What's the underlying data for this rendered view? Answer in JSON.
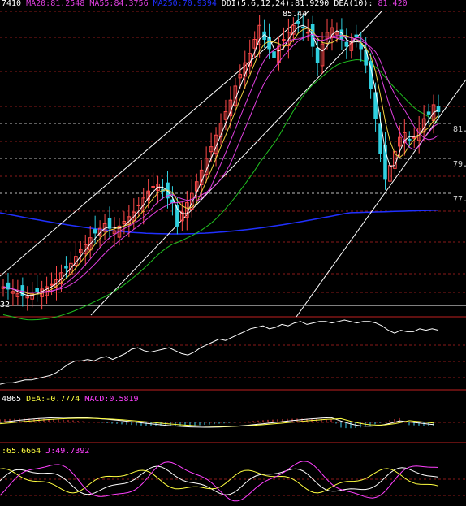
{
  "colors": {
    "background": "#000000",
    "grid": "#8a1a1a",
    "divider": "#c02020",
    "candle_up": "#ff4a4a",
    "candle_down": "#30d0e0",
    "ma_short": "#ffffff",
    "ma10": "#f0d040",
    "ma20": "#e040e0",
    "ma60": "#20c020",
    "ma250": "#2030ff",
    "channel": "#ffffff",
    "price_label": "#d0d0d0",
    "high_label": "#ffffff",
    "indicator_white": "#ffffff",
    "indicator_yellow": "#ffff40",
    "indicator_magenta": "#ff40ff",
    "macd_pos": "#ff4040",
    "macd_neg": "#40d0f0"
  },
  "main_legend": [
    {
      "text": "7410",
      "color": "#ffffff"
    },
    {
      "text": "MA20:81.2548",
      "color": "#e040e0"
    },
    {
      "text": "MA55:84.3756",
      "color": "#e040e0"
    },
    {
      "text": "MA250:70.9394",
      "color": "#2030ff"
    },
    {
      "text": "DDI(5,6,12,24):81.9290",
      "color": "#ffffff"
    },
    {
      "text": "DEA(10):",
      "color": "#ffffff"
    },
    {
      "text": "81.420",
      "color": "#e040e0"
    }
  ],
  "price_labels": [
    "81.",
    "79.",
    "77."
  ],
  "high_label": "85.44",
  "low_label": "32",
  "macd_legend": [
    {
      "text": "4865",
      "color": "#ffffff"
    },
    {
      "text": "DEA:-0.7774",
      "color": "#ffff40"
    },
    {
      "text": "MACD:0.5819",
      "color": "#ff40ff"
    }
  ],
  "kdj_legend": [
    {
      "text": ":65.6664",
      "color": "#ffff40"
    },
    {
      "text": "J:49.7392",
      "color": "#ff40ff"
    }
  ],
  "chart_data": {
    "type": "candlestick",
    "price_range": [
      73.2,
      85.8
    ],
    "close": [
      74.0,
      73.9,
      73.8,
      73.7,
      73.6,
      73.6,
      73.7,
      73.8,
      73.9,
      74.0,
      74.1,
      74.3,
      74.6,
      74.8,
      75.0,
      75.3,
      75.6,
      75.8,
      76.1,
      76.3,
      76.5,
      76.7,
      76.5,
      76.4,
      76.6,
      76.8,
      77.0,
      77.2,
      77.5,
      77.8,
      78.1,
      78.3,
      78.4,
      78.1,
      77.8,
      77.6,
      76.6,
      77.2,
      77.6,
      78.0,
      78.5,
      79.0,
      79.5,
      80.0,
      80.5,
      81.0,
      81.5,
      82.0,
      82.6,
      83.1,
      83.6,
      84.0,
      84.6,
      85.2,
      84.6,
      84.2,
      83.8,
      84.3,
      84.6,
      84.9,
      85.2,
      85.3,
      85.1,
      84.9,
      84.3,
      83.6,
      84.4,
      84.9,
      85.1,
      84.9,
      84.6,
      84.3,
      84.5,
      84.7,
      84.2,
      83.5,
      82.5,
      81.2,
      79.7,
      78.6,
      79.2,
      79.8,
      80.4,
      80.6,
      80.3,
      80.4,
      80.8,
      81.2,
      81.4,
      81.8,
      81.5
    ],
    "indicator_line": [
      -2.4,
      -2.3,
      -2.3,
      -2.2,
      -2.1,
      -2.1,
      -2.0,
      -1.9,
      -1.8,
      -1.6,
      -1.3,
      -1.0,
      -0.8,
      -0.8,
      -0.7,
      -0.8,
      -0.6,
      -0.5,
      -0.7,
      -0.5,
      -0.3,
      0.0,
      0.1,
      -0.1,
      -0.2,
      -0.1,
      0.0,
      0.1,
      -0.1,
      -0.3,
      -0.4,
      -0.2,
      0.1,
      0.3,
      0.5,
      0.7,
      0.6,
      0.8,
      1.0,
      1.2,
      1.4,
      1.5,
      1.6,
      1.4,
      1.5,
      1.7,
      1.6,
      1.8,
      1.9,
      1.7,
      1.8,
      1.9,
      1.9,
      1.8,
      1.9,
      2.0,
      1.9,
      1.8,
      1.9,
      1.9,
      1.8,
      1.6,
      1.3,
      1.1,
      1.3,
      1.2,
      1.2,
      1.4,
      1.3,
      1.4,
      1.3
    ]
  }
}
